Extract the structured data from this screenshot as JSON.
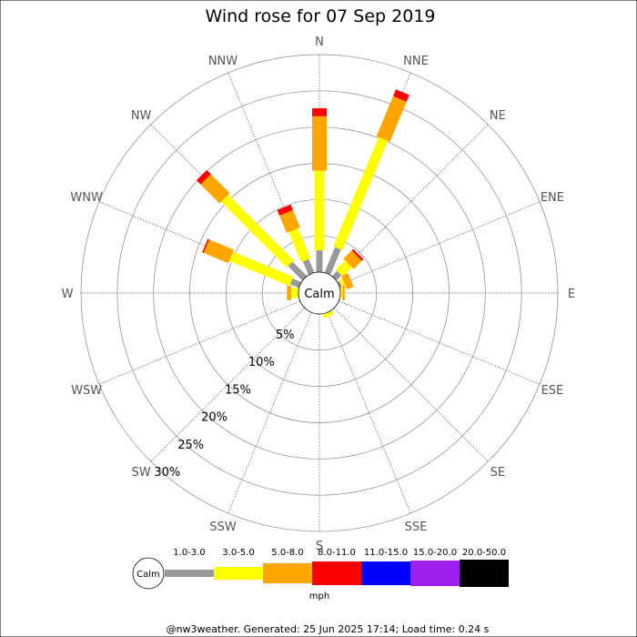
{
  "chart_data": {
    "type": "wind-rose",
    "title": "Wind rose for 07 Sep 2019",
    "directions": [
      "N",
      "NNE",
      "NE",
      "ENE",
      "E",
      "ESE",
      "SE",
      "SSE",
      "S",
      "SSW",
      "SW",
      "WSW",
      "W",
      "WNW",
      "NW",
      "NNW"
    ],
    "radial_ticks": [
      "5%",
      "10%",
      "15%",
      "20%",
      "25%",
      "30%"
    ],
    "radial_values": [
      5,
      10,
      15,
      20,
      25,
      30
    ],
    "rmax": 30,
    "calm_label": "Calm",
    "bins": [
      {
        "label": "1.0-3.0",
        "color": "#999999"
      },
      {
        "label": "3.0-5.0",
        "color": "#ffff00"
      },
      {
        "label": "5.0-8.0",
        "color": "#ffa500"
      },
      {
        "label": "8.0-11.0",
        "color": "#ff0000"
      },
      {
        "label": "11.0-15.0",
        "color": "#0000ff"
      },
      {
        "label": "15.0-20.0",
        "color": "#a020f0"
      },
      {
        "label": "20.0-50.0",
        "color": "#000000"
      }
    ],
    "series": [
      {
        "direction": "N",
        "values": [
          3.0,
          11.0,
          7.5,
          1.1,
          0,
          0,
          0
        ]
      },
      {
        "direction": "NNE",
        "values": [
          3.8,
          16.3,
          6.0,
          1.0,
          0,
          0,
          0
        ]
      },
      {
        "direction": "NE",
        "values": [
          1.0,
          1.8,
          1.6,
          0.3,
          0,
          0,
          0
        ]
      },
      {
        "direction": "ENE",
        "values": [
          0.3,
          0.5,
          1.0,
          0,
          0,
          0,
          0
        ]
      },
      {
        "direction": "E",
        "values": [
          0,
          0.3,
          0.3,
          0,
          0,
          0,
          0
        ]
      },
      {
        "direction": "ESE",
        "values": [
          0,
          0,
          0,
          0,
          0,
          0,
          0
        ]
      },
      {
        "direction": "SE",
        "values": [
          0,
          0,
          0,
          0,
          0,
          0,
          0
        ]
      },
      {
        "direction": "SSE",
        "values": [
          0,
          0.6,
          0,
          0,
          0,
          0,
          0
        ]
      },
      {
        "direction": "S",
        "values": [
          0,
          0,
          0,
          0,
          0,
          0,
          0
        ]
      },
      {
        "direction": "SSW",
        "values": [
          0,
          0,
          0,
          0,
          0,
          0,
          0
        ]
      },
      {
        "direction": "SW",
        "values": [
          0,
          0,
          0,
          0,
          0,
          0,
          0
        ]
      },
      {
        "direction": "WSW",
        "values": [
          0,
          0,
          0,
          0,
          0,
          0,
          0
        ]
      },
      {
        "direction": "W",
        "values": [
          0,
          1.0,
          0.6,
          0,
          0,
          0,
          0
        ]
      },
      {
        "direction": "WNW",
        "values": [
          1.3,
          9.0,
          3.7,
          0.2,
          0,
          0,
          0
        ]
      },
      {
        "direction": "NW",
        "values": [
          2.8,
          12.8,
          3.7,
          0.8,
          0,
          0,
          0
        ]
      },
      {
        "direction": "NNW",
        "values": [
          2.0,
          4.5,
          2.6,
          0.8,
          0,
          0,
          0
        ]
      }
    ],
    "units": "mph",
    "footer": "@nw3weather. Generated: 25 Jun 2025 17:14; Load time: 0.24 s"
  }
}
